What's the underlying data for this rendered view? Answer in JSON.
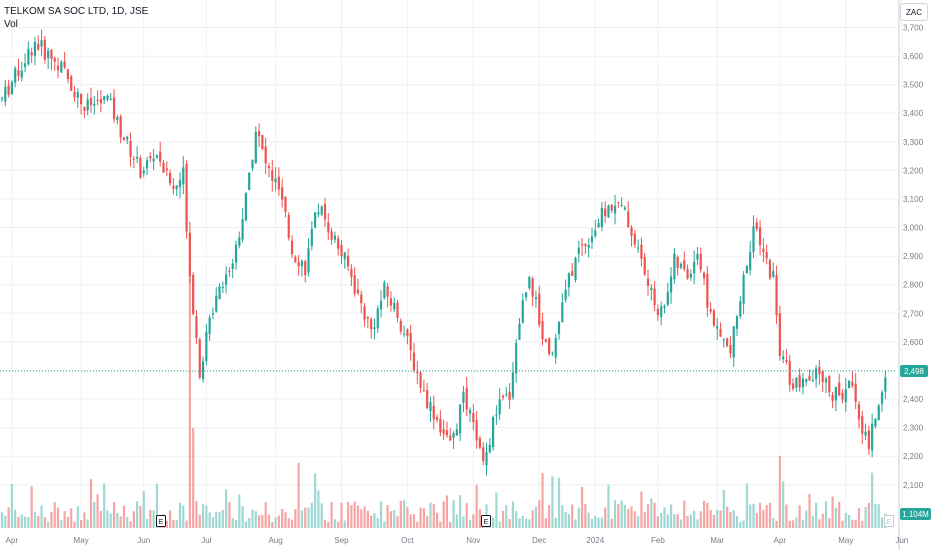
{
  "legend": {
    "symbol": "TELKOM SA SOC LTD, 1D, JSE",
    "volume_label": "Vol"
  },
  "currency": "ZAC",
  "last_price_label": "2,498",
  "last_volume_label": "1.104M",
  "earnings_marker": "E",
  "colors": {
    "up": "#26a69a",
    "down": "#ef5350",
    "vol_up": "#9fd8d2",
    "vol_down": "#f5a5a3",
    "grid": "#eef0f4",
    "axis_text": "#787b86",
    "price_line": "#26a69a",
    "vol_badge": "#26a69a"
  },
  "chart_data": {
    "type": "candlestick",
    "title": "TELKOM SA SOC LTD, 1D, JSE",
    "y_axis": {
      "ticks": [
        2100,
        2200,
        2300,
        2400,
        2500,
        2600,
        2700,
        2800,
        2900,
        3000,
        3100,
        3200,
        3300,
        3400,
        3500,
        3600,
        3700
      ],
      "tick_labels": [
        "2,100",
        "2,200",
        "2,300",
        "2,400",
        "2,500",
        "2,600",
        "2,700",
        "2,800",
        "2,900",
        "3,000",
        "3,100",
        "3,200",
        "3,300",
        "3,400",
        "3,500",
        "3,600",
        "3,700"
      ],
      "range": [
        2020,
        3720
      ],
      "unit": "ZAC"
    },
    "x_axis": {
      "labels": [
        "Apr",
        "May",
        "Jun",
        "Jul",
        "Aug",
        "Sep",
        "Oct",
        "Nov",
        "Dec",
        "2024",
        "Feb",
        "Mar",
        "Apr",
        "May",
        "Jun"
      ]
    },
    "last_price": 2498,
    "last_volume": "1.104M",
    "earnings_events": [
      "Jun",
      "Nov"
    ],
    "price_path": [
      [
        0,
        3450
      ],
      [
        10,
        3650
      ],
      [
        18,
        3560
      ],
      [
        25,
        3420
      ],
      [
        32,
        3450
      ],
      [
        36,
        3340
      ],
      [
        42,
        3200
      ],
      [
        47,
        3260
      ],
      [
        52,
        3130
      ],
      [
        55,
        3190
      ],
      [
        57,
        2840
      ],
      [
        60,
        2500
      ],
      [
        65,
        2780
      ],
      [
        70,
        2880
      ],
      [
        74,
        3100
      ],
      [
        77,
        3350
      ],
      [
        80,
        3220
      ],
      [
        84,
        3130
      ],
      [
        88,
        2920
      ],
      [
        92,
        2860
      ],
      [
        96,
        3080
      ],
      [
        100,
        2980
      ],
      [
        105,
        2860
      ],
      [
        108,
        2760
      ],
      [
        112,
        2640
      ],
      [
        116,
        2780
      ],
      [
        120,
        2700
      ],
      [
        124,
        2560
      ],
      [
        128,
        2420
      ],
      [
        132,
        2330
      ],
      [
        136,
        2230
      ],
      [
        140,
        2400
      ],
      [
        144,
        2270
      ],
      [
        146,
        2160
      ],
      [
        150,
        2360
      ],
      [
        154,
        2420
      ],
      [
        157,
        2680
      ],
      [
        160,
        2840
      ],
      [
        164,
        2620
      ],
      [
        167,
        2560
      ],
      [
        171,
        2780
      ],
      [
        175,
        2920
      ],
      [
        179,
        2980
      ],
      [
        182,
        3040
      ],
      [
        186,
        3090
      ],
      [
        189,
        3050
      ],
      [
        193,
        2920
      ],
      [
        197,
        2760
      ],
      [
        200,
        2700
      ],
      [
        204,
        2880
      ],
      [
        208,
        2830
      ],
      [
        211,
        2920
      ],
      [
        214,
        2740
      ],
      [
        217,
        2630
      ],
      [
        221,
        2560
      ],
      [
        223,
        2690
      ],
      [
        226,
        2880
      ],
      [
        228,
        3000
      ],
      [
        231,
        2900
      ],
      [
        234,
        2830
      ],
      [
        236,
        2560
      ],
      [
        240,
        2450
      ],
      [
        244,
        2450
      ],
      [
        248,
        2490
      ],
      [
        252,
        2420
      ],
      [
        255,
        2410
      ],
      [
        258,
        2460
      ],
      [
        261,
        2300
      ],
      [
        263,
        2240
      ],
      [
        266,
        2380
      ],
      [
        268,
        2498
      ]
    ],
    "volume_spikes": [
      {
        "index": 57,
        "value": "largest"
      },
      {
        "index": 58,
        "value": "high"
      },
      {
        "index": 236,
        "value": "high"
      }
    ]
  }
}
